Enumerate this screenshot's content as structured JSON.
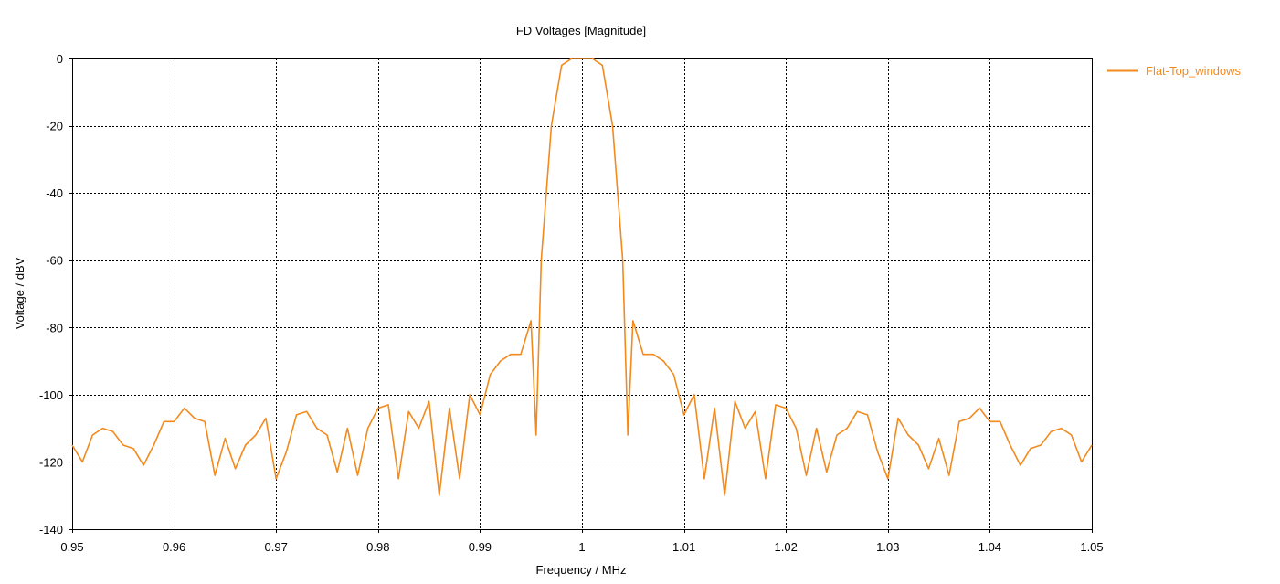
{
  "chart_data": {
    "type": "line",
    "title": "FD Voltages [Magnitude]",
    "xlabel": "Frequency / MHz",
    "ylabel": "Voltage / dBV",
    "xlim": [
      0.95,
      1.05
    ],
    "ylim": [
      -140,
      0
    ],
    "x_ticks": [
      "0.95",
      "0.96",
      "0.97",
      "0.98",
      "0.99",
      "1",
      "1.01",
      "1.02",
      "1.03",
      "1.04",
      "1.05"
    ],
    "x_tick_values": [
      0.95,
      0.96,
      0.97,
      0.98,
      0.99,
      1.0,
      1.01,
      1.02,
      1.03,
      1.04,
      1.05
    ],
    "y_ticks": [
      "0",
      "-20",
      "-40",
      "-60",
      "-80",
      "-100",
      "-120",
      "-140"
    ],
    "y_tick_values": [
      0,
      -20,
      -40,
      -60,
      -80,
      -100,
      -120,
      -140
    ],
    "grid": true,
    "legend_position": "right",
    "series": [
      {
        "name": "Flat-Top_windows",
        "color": "#f28a1e",
        "x": [
          0.95,
          0.951,
          0.952,
          0.953,
          0.954,
          0.955,
          0.956,
          0.957,
          0.958,
          0.959,
          0.96,
          0.961,
          0.962,
          0.963,
          0.964,
          0.965,
          0.966,
          0.967,
          0.968,
          0.969,
          0.97,
          0.971,
          0.972,
          0.973,
          0.974,
          0.975,
          0.976,
          0.977,
          0.978,
          0.979,
          0.98,
          0.981,
          0.982,
          0.983,
          0.984,
          0.985,
          0.986,
          0.987,
          0.988,
          0.989,
          0.99,
          0.991,
          0.992,
          0.993,
          0.994,
          0.995,
          0.9955,
          0.996,
          0.997,
          0.998,
          0.999,
          1.0,
          1.001,
          1.002,
          1.003,
          1.004,
          1.0045,
          1.005,
          1.006,
          1.007,
          1.008,
          1.009,
          1.01,
          1.011,
          1.012,
          1.013,
          1.014,
          1.015,
          1.016,
          1.017,
          1.018,
          1.019,
          1.02,
          1.021,
          1.022,
          1.023,
          1.024,
          1.025,
          1.026,
          1.027,
          1.028,
          1.029,
          1.03,
          1.031,
          1.032,
          1.033,
          1.034,
          1.035,
          1.036,
          1.037,
          1.038,
          1.039,
          1.04,
          1.041,
          1.042,
          1.043,
          1.044,
          1.045,
          1.046,
          1.047,
          1.048,
          1.049,
          1.05
        ],
        "y": [
          -115,
          -120,
          -112,
          -110,
          -111,
          -115,
          -116,
          -121,
          -115,
          -108,
          -108,
          -104,
          -107,
          -108,
          -124,
          -113,
          -122,
          -115,
          -112,
          -107,
          -125,
          -117,
          -106,
          -105,
          -110,
          -112,
          -123,
          -110,
          -124,
          -110,
          -104,
          -103,
          -125,
          -105,
          -110,
          -102,
          -130,
          -104,
          -125,
          -100,
          -106,
          -94,
          -90,
          -88,
          -88,
          -78,
          -112,
          -60,
          -20,
          -2,
          0,
          0,
          0,
          -2,
          -20,
          -60,
          -112,
          -78,
          -88,
          -88,
          -90,
          -94,
          -106,
          -100,
          -125,
          -104,
          -130,
          -102,
          -110,
          -105,
          -125,
          -103,
          -104,
          -110,
          -124,
          -110,
          -123,
          -112,
          -110,
          -105,
          -106,
          -117,
          -125,
          -107,
          -112,
          -115,
          -122,
          -113,
          -124,
          -108,
          -107,
          -104,
          -108,
          -108,
          -115,
          -121,
          -116,
          -115,
          -111,
          -110,
          -112,
          -120,
          -115
        ]
      }
    ]
  }
}
